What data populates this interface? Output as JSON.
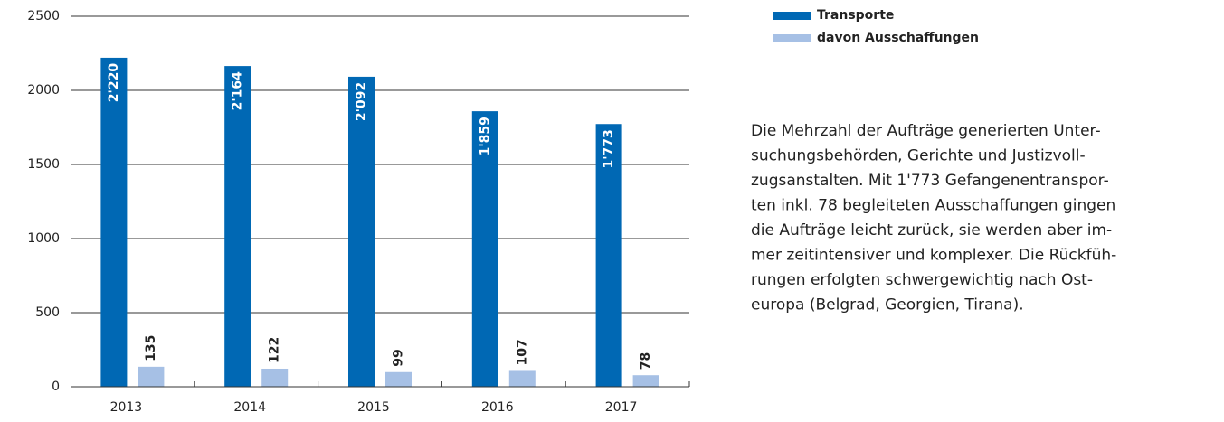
{
  "chart_data": {
    "type": "bar",
    "categories": [
      "2013",
      "2014",
      "2015",
      "2016",
      "2017"
    ],
    "series": [
      {
        "name": "Transporte",
        "color": "#0068b4",
        "values": [
          2220,
          2164,
          2092,
          1859,
          1773
        ],
        "value_labels": [
          "2'220",
          "2'164",
          "2'092",
          "1'859",
          "1'773"
        ]
      },
      {
        "name": "davon Ausschaffungen",
        "color": "#a6c0e5",
        "values": [
          135,
          122,
          99,
          107,
          78
        ]
      }
    ],
    "ylim": [
      0,
      2500
    ],
    "yticks": [
      0,
      500,
      1000,
      1500,
      2000,
      2500
    ],
    "grid": true,
    "legend": "top-right"
  },
  "text": {
    "lines": [
      "Die Mehrzahl der Aufträge generierten Unter-",
      "suchungsbehörden, Gerichte und Justizvoll-",
      "zugsanstalten. Mit 1'773 Gefangenentranspor-",
      "ten inkl. 78 begleiteten Ausschaffungen gingen",
      "die Aufträge leicht zurück, sie werden aber im-",
      "mer zeitintensiver und komplexer. Die Rückfüh-",
      "rungen erfolgten schwergewichtig nach Ost-",
      "europa (Belgrad, Georgien, Tirana)."
    ]
  }
}
